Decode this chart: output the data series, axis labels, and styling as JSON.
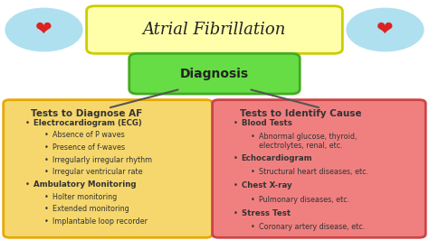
{
  "title": "Atrial Fibrillation",
  "title_box_color": "#FFFFAA",
  "title_border_color": "#CCCC00",
  "diagnosis_label": "Diagnosis",
  "diagnosis_box_color": "#66DD44",
  "diagnosis_border_color": "#44AA22",
  "bg_color": "#FFFFFF",
  "left_box_color": "#F5D76E",
  "left_box_border": "#E8A800",
  "right_box_color": "#F08080",
  "right_box_border": "#CC4444",
  "left_title": "Tests to Diagnose AF",
  "right_title": "Tests to Identify Cause",
  "left_content": [
    {
      "bullet": "•",
      "text": "Electrocardiogram (ECG)",
      "bold": true,
      "indent": 0
    },
    {
      "bullet": "•",
      "text": "Absence of P waves",
      "bold": false,
      "indent": 1
    },
    {
      "bullet": "•",
      "text": "Presence of f-waves",
      "bold": false,
      "indent": 1
    },
    {
      "bullet": "•",
      "text": "Irregularly irregular rhythm",
      "bold": false,
      "indent": 1
    },
    {
      "bullet": "•",
      "text": "Irregular ventricular rate",
      "bold": false,
      "indent": 1
    },
    {
      "bullet": "•",
      "text": "Ambulatory Monitoring",
      "bold": true,
      "indent": 0
    },
    {
      "bullet": "•",
      "text": "Holter monitoring",
      "bold": false,
      "indent": 1
    },
    {
      "bullet": "•",
      "text": "Extended monitoring",
      "bold": false,
      "indent": 1
    },
    {
      "bullet": "•",
      "text": "Implantable loop recorder",
      "bold": false,
      "indent": 1
    }
  ],
  "right_content": [
    {
      "bullet": "•",
      "text": "Blood Tests",
      "bold": true,
      "indent": 0
    },
    {
      "bullet": "•",
      "text": "Abnormal glucose, thyroid,\n    electrolytes, renal, etc.",
      "bold": false,
      "indent": 1
    },
    {
      "bullet": "•",
      "text": "Echocardiogram",
      "bold": true,
      "indent": 0
    },
    {
      "bullet": "•",
      "text": "Structural heart diseases, etc.",
      "bold": false,
      "indent": 1
    },
    {
      "bullet": "•",
      "text": "Chest X-ray",
      "bold": true,
      "indent": 0
    },
    {
      "bullet": "•",
      "text": "Pulmonary diseases, etc.",
      "bold": false,
      "indent": 1
    },
    {
      "bullet": "•",
      "text": "Stress Test",
      "bold": true,
      "indent": 0
    },
    {
      "bullet": "•",
      "text": "Coronary artery disease, etc.",
      "bold": false,
      "indent": 1
    }
  ]
}
